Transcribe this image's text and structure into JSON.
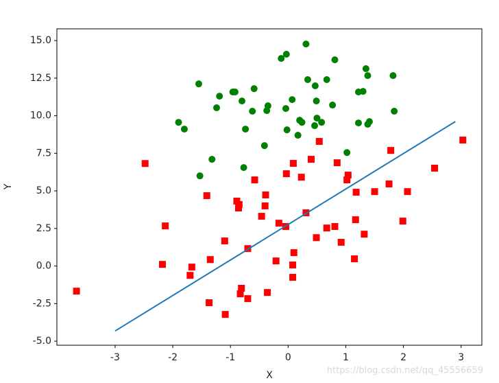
{
  "chart_data": {
    "type": "scatter",
    "xlabel": "X",
    "ylabel": "Y",
    "xlim": [
      -4.01,
      3.36
    ],
    "ylim": [
      -5.27,
      15.78
    ],
    "xticks": [
      -3,
      -2,
      -1,
      0,
      1,
      2,
      3
    ],
    "yticks": [
      {
        "value": -5,
        "label": "-5.0"
      },
      {
        "value": -2.5,
        "label": "-2.5"
      },
      {
        "value": 0,
        "label": "0.0"
      },
      {
        "value": 2.5,
        "label": "2.5"
      },
      {
        "value": 5,
        "label": "5.0"
      },
      {
        "value": 7.5,
        "label": "7.5"
      },
      {
        "value": 10,
        "label": "10.0"
      },
      {
        "value": 12.5,
        "label": "12.5"
      },
      {
        "value": 15,
        "label": "15.0"
      }
    ],
    "series": [
      {
        "type": "scatter",
        "marker": "circle",
        "color": "#008000",
        "x": [
          0.31,
          -0.03,
          -0.12,
          0.81,
          1.35,
          0.67,
          0.34,
          1.38,
          1.82,
          -1.55,
          0.47,
          -0.59,
          -0.96,
          -0.92,
          -1.19,
          1.3,
          1.22,
          -0.8,
          0.07,
          0.49,
          -1.24,
          -0.35,
          -0.62,
          -0.37,
          0.77,
          -0.04,
          0.5,
          0.2,
          0.24,
          -1.9,
          -1.8,
          -0.74,
          -0.02,
          0.46,
          1.84,
          1.41,
          1.22,
          1.38,
          0.58,
          0.17,
          -0.41,
          1.02,
          -1.32,
          -0.77,
          -1.53
        ],
        "values": [
          14.77,
          14.09,
          13.81,
          13.72,
          13.13,
          12.4,
          12.4,
          12.67,
          12.67,
          12.12,
          11.99,
          11.8,
          11.58,
          11.58,
          11.3,
          11.62,
          11.58,
          10.98,
          11.07,
          10.98,
          10.53,
          10.66,
          10.3,
          10.34,
          10.71,
          10.48,
          9.84,
          9.7,
          9.56,
          9.56,
          9.11,
          9.11,
          9.06,
          9.34,
          10.3,
          9.61,
          9.52,
          9.43,
          9.56,
          8.7,
          8.01,
          7.55,
          7.1,
          6.55,
          6.0
        ]
      },
      {
        "type": "scatter",
        "marker": "square",
        "color": "#ff0000",
        "x": [
          -3.67,
          -2.48,
          -2.13,
          -2.18,
          -1.67,
          -1.7,
          -1.41,
          -1.35,
          -1.37,
          -1.1,
          -1.09,
          -0.89,
          -0.85,
          -0.86,
          -0.81,
          -0.83,
          -0.7,
          -0.7,
          -0.58,
          -0.46,
          -0.39,
          -0.4,
          -0.36,
          -0.21,
          -0.16,
          -0.04,
          -0.03,
          0.09,
          0.1,
          0.08,
          0.08,
          0.23,
          0.31,
          0.4,
          0.54,
          0.49,
          0.67,
          0.81,
          0.85,
          0.92,
          1.02,
          1.04,
          1.15,
          1.18,
          1.17,
          1.32,
          1.5,
          1.75,
          1.78,
          1.99,
          2.07,
          2.54,
          3.03
        ],
        "values": [
          -1.67,
          6.82,
          2.67,
          0.11,
          -0.07,
          -0.62,
          4.68,
          0.43,
          -2.44,
          1.67,
          -3.22,
          4.32,
          4.09,
          3.86,
          -1.48,
          -1.85,
          -2.17,
          1.16,
          5.73,
          3.31,
          4.73,
          4.0,
          -1.76,
          0.34,
          2.85,
          2.63,
          6.14,
          6.83,
          0.89,
          0.07,
          -0.75,
          5.91,
          3.54,
          7.1,
          8.29,
          1.89,
          2.53,
          2.63,
          6.87,
          1.58,
          5.73,
          6.05,
          0.48,
          4.91,
          3.08,
          2.12,
          4.95,
          5.46,
          7.69,
          2.99,
          4.95,
          6.51,
          8.38
        ]
      },
      {
        "type": "line",
        "color": "#1f77b4",
        "x": [
          -3,
          2.9
        ],
        "values": [
          -4.32,
          9.61
        ]
      }
    ],
    "watermark": "https://blog.csdn.net/qq_45556659"
  }
}
